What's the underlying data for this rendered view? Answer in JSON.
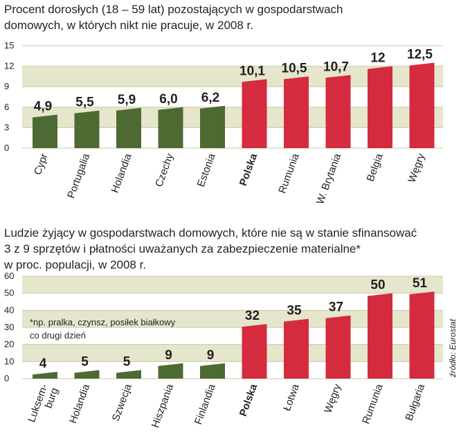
{
  "charts": [
    {
      "title_lines": [
        "Procent dorosłych (18 – 59 lat) pozostających w gospodarstwach",
        "domowych, w których nikt nie pracuje, w 2008 r."
      ]
    },
    {
      "title_lines": [
        "Ludzie żyjący w gospodarstwach domowych, które nie są w stanie sfinansować",
        "3 z 9 sprzętów i płatności uważanych za zabezpieczenie materialne*",
        "w proc. populacji, w 2008 r."
      ],
      "note_lines": [
        "*np. pralka, czynsz, posiłek białkowy",
        "co drugi dzień"
      ],
      "source": "źródło: Eurostat"
    }
  ],
  "colors": {
    "green": "#4e6a33",
    "red": "#d52b3f",
    "band": "#e6e6cd",
    "grid": "#c9c9a6"
  },
  "chart_data": [
    {
      "type": "bar",
      "title": "Procent dorosłych (18 – 59 lat) pozostających w gospodarstwach domowych, w których nikt nie pracuje, w 2008 r.",
      "categories": [
        "Cypr",
        "Portugalia",
        "Holandia",
        "Czechy",
        "Estonia",
        "Polska",
        "Rumunia",
        "W. Brytania",
        "Belgia",
        "Węgry"
      ],
      "values": [
        4.9,
        5.5,
        5.9,
        6.0,
        6.2,
        10.1,
        10.5,
        10.7,
        12,
        12.5
      ],
      "value_labels": [
        "4,9",
        "5,5",
        "5,9",
        "6,0",
        "6,2",
        "10,1",
        "10,5",
        "10,7",
        "12",
        "12,5"
      ],
      "highlight_category": "Polska",
      "bar_colors": [
        "green",
        "green",
        "green",
        "green",
        "green",
        "red",
        "red",
        "red",
        "red",
        "red"
      ],
      "yticks": [
        "0",
        "3",
        "6",
        "9",
        "12",
        "15"
      ],
      "ylim": [
        0,
        15
      ],
      "grid": true
    },
    {
      "type": "bar",
      "title": "Ludzie żyjący w gospodarstwach domowych, które nie są w stanie sfinansować 3 z 9 sprzętów i płatności uważanych za zabezpieczenie materialne* w proc. populacji, w 2008 r.",
      "categories": [
        [
          "Luksem-",
          "burg"
        ],
        [
          "Holandia"
        ],
        [
          "Szwecja"
        ],
        [
          "Hiszpania"
        ],
        [
          "Finlandia"
        ],
        [
          "Polska"
        ],
        [
          "Łotwa"
        ],
        [
          "Węgry"
        ],
        [
          "Rumunia"
        ],
        [
          "Bułgaria"
        ]
      ],
      "values": [
        4,
        5,
        5,
        9,
        9,
        32,
        35,
        37,
        50,
        51
      ],
      "value_labels": [
        "4",
        "5",
        "5",
        "9",
        "9",
        "32",
        "35",
        "37",
        "50",
        "51"
      ],
      "highlight_category": "Polska",
      "bar_colors": [
        "green",
        "green",
        "green",
        "green",
        "green",
        "red",
        "red",
        "red",
        "red",
        "red"
      ],
      "yticks": [
        "0",
        "10",
        "20",
        "30",
        "40",
        "50",
        "60"
      ],
      "ylim": [
        0,
        60
      ],
      "grid": true
    }
  ]
}
